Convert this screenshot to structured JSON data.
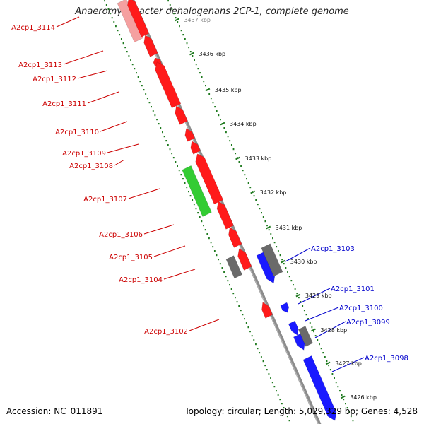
{
  "title": "Anaeromyxobacter dehalogenans 2CP-1, complete genome",
  "footer": {
    "accession": "Accession: NC_011891",
    "topology": "Topology: circular; Length: 5,029,329 bp; Genes: 4,528"
  },
  "colors": {
    "reverse_strand": "#ff1a1a",
    "reverse_faded": "#f5a0a0",
    "forward_strand": "#1a1aff",
    "rna": "#33cc33",
    "other": "#6a6a6a",
    "backbone": "#8c8c8c",
    "ticks": "#1f7a1f",
    "ruler_faint": "#9ad09a",
    "label_red": "#cc0000",
    "label_blue": "#0000cc"
  },
  "kbp_labels": [
    "3437 kbp",
    "3436 kbp",
    "3435 kbp",
    "3434 kbp",
    "3433 kbp",
    "3432 kbp",
    "3431 kbp",
    "3430 kbp",
    "3429 kbp",
    "3428 kbp",
    "3427 kbp",
    "3426 kbp"
  ],
  "gene_labels_left": [
    "A2cp1_3114",
    "A2cp1_3113",
    "A2cp1_3112",
    "A2cp1_3111",
    "A2cp1_3110",
    "A2cp1_3109",
    "A2cp1_3108",
    "A2cp1_3107",
    "A2cp1_3106",
    "A2cp1_3105",
    "A2cp1_3104",
    "A2cp1_3102"
  ],
  "gene_labels_right": [
    "A2cp1_3103",
    "A2cp1_3101",
    "A2cp1_3100",
    "A2cp1_3099",
    "A2cp1_3098"
  ]
}
